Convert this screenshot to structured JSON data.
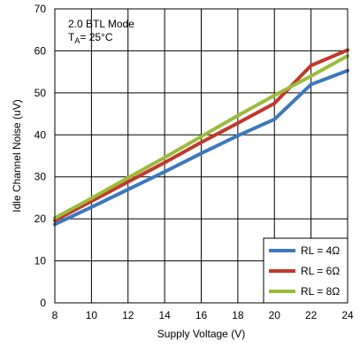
{
  "chart_data": {
    "type": "line",
    "xlabel": "Supply Voltage (V)",
    "ylabel": "Idle Channel Noise (uV)",
    "xlim": [
      8,
      24
    ],
    "ylim": [
      0,
      70
    ],
    "xticks": [
      "8",
      "10",
      "12",
      "14",
      "16",
      "18",
      "20",
      "22",
      "24"
    ],
    "yticks": [
      "0",
      "10",
      "20",
      "30",
      "40",
      "50",
      "60",
      "70"
    ],
    "grid": true,
    "legend_position": "bottom-right",
    "annotation": {
      "line1": "2.0 BTL Mode",
      "line2_main": "T",
      "line2_sub": "A",
      "line2_rest": "= 25°C"
    },
    "series": [
      {
        "name": "RL = 4Ω",
        "color": "#3b78bd",
        "x": [
          8,
          10,
          12,
          14,
          16,
          18,
          20,
          22,
          24
        ],
        "y": [
          18.7,
          22.8,
          27.0,
          31.2,
          35.6,
          39.8,
          43.7,
          52.0,
          55.3
        ]
      },
      {
        "name": "RL = 6Ω",
        "color": "#c0392b",
        "x": [
          8,
          10,
          12,
          14,
          16,
          18,
          20,
          22,
          24
        ],
        "y": [
          19.6,
          24.2,
          28.8,
          33.4,
          38.2,
          42.8,
          47.5,
          56.5,
          60.2
        ]
      },
      {
        "name": "RL = 8Ω",
        "color": "#9bbb3b",
        "x": [
          8,
          10,
          12,
          14,
          16,
          18,
          20,
          22,
          24
        ],
        "y": [
          20.2,
          24.9,
          29.8,
          34.6,
          39.6,
          44.6,
          49.4,
          54.0,
          58.8
        ]
      }
    ]
  }
}
